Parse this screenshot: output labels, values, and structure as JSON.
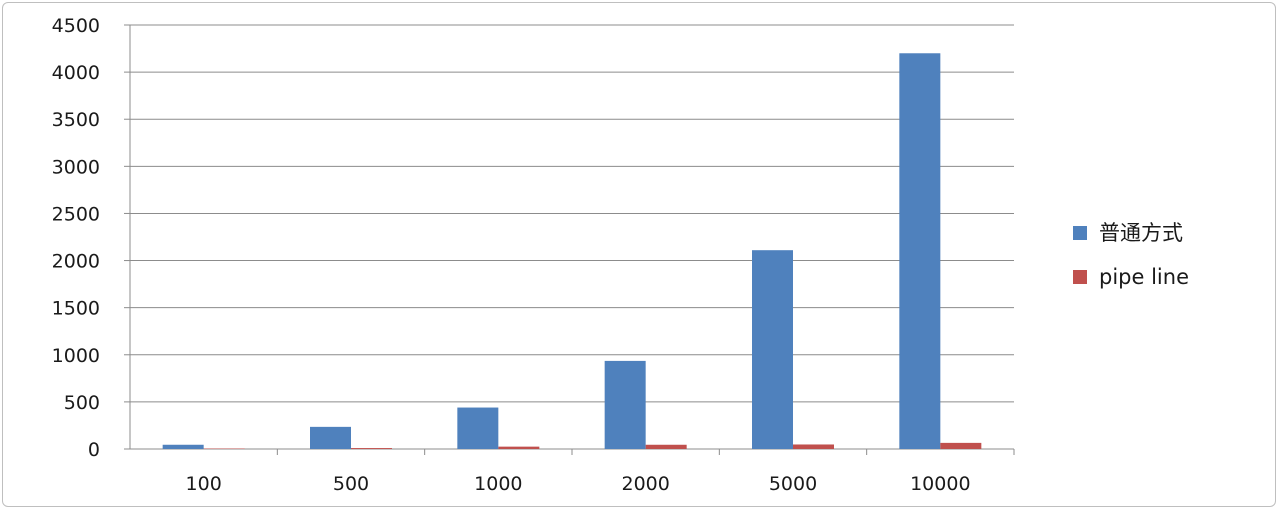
{
  "chart_data": {
    "type": "bar",
    "categories": [
      "100",
      "500",
      "1000",
      "2000",
      "5000",
      "10000"
    ],
    "series": [
      {
        "name": "普通方式",
        "color": "#4f81bd",
        "values": [
          45,
          235,
          440,
          935,
          2110,
          4200
        ]
      },
      {
        "name": "pipeline",
        "color": "#c0504d",
        "values": [
          5,
          10,
          25,
          45,
          48,
          65
        ]
      }
    ],
    "y_ticks": [
      "0",
      "500",
      "1000",
      "1500",
      "2000",
      "2500",
      "3000",
      "3500",
      "4000",
      "4500"
    ],
    "ylim": [
      0,
      4500
    ],
    "grid": true,
    "legend_position": "right",
    "legend_labels": [
      "普通方式",
      "pipe line"
    ]
  }
}
